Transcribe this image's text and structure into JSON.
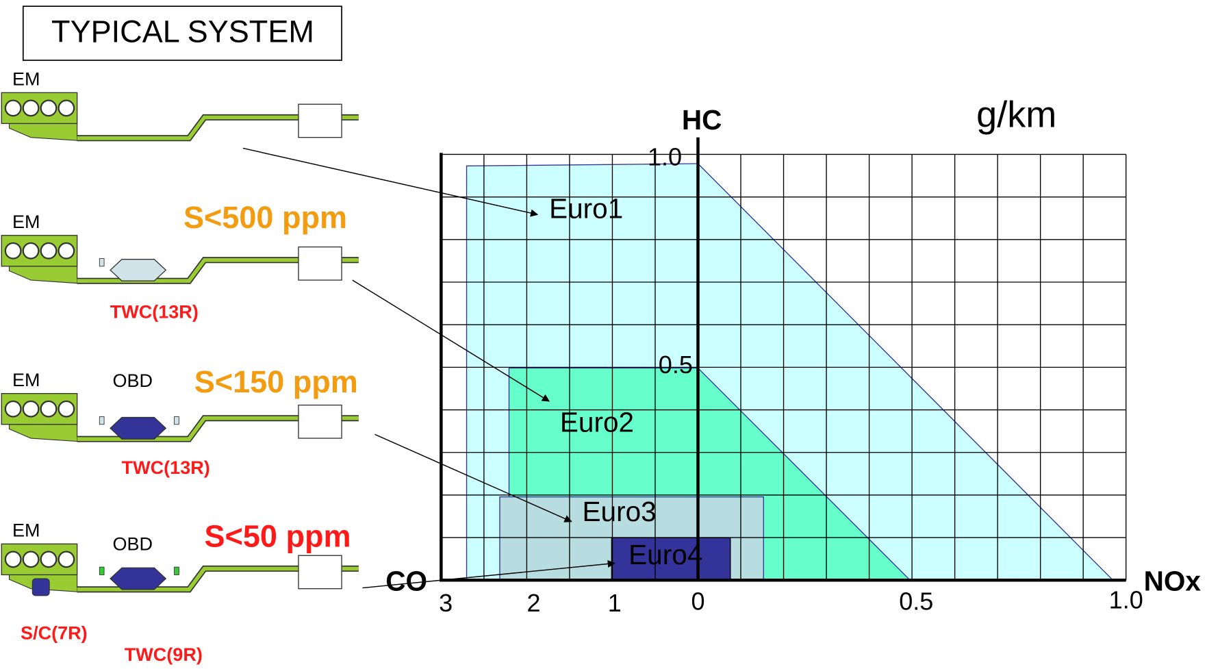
{
  "header": {
    "title": "TYPICAL SYSTEM"
  },
  "systems": [
    {
      "engine": "EM"
    },
    {
      "engine": "EM",
      "sulfur": "S<500 ppm",
      "catalyst": "TWC(13R)"
    },
    {
      "engine": "EM",
      "obd": "OBD",
      "sulfur": "S<150 ppm",
      "catalyst": "TWC(13R)"
    },
    {
      "engine": "EM",
      "obd": "OBD",
      "sulfur": "S<50 ppm",
      "catalyst": "TWC(9R)",
      "starter_catalyst": "S/C(7R)"
    }
  ],
  "chart": {
    "unit": "g/km",
    "axes": {
      "hc": "HC",
      "co": "CO",
      "nox": "NOx"
    },
    "co_ticks": [
      "3",
      "2",
      "1",
      "0"
    ],
    "nox_ticks": [
      "0.5",
      "1.0"
    ],
    "hc_ticks": [
      "0.5",
      "1.0"
    ],
    "regions": [
      "Euro1",
      "Euro2",
      "Euro3",
      "Euro4"
    ]
  }
}
